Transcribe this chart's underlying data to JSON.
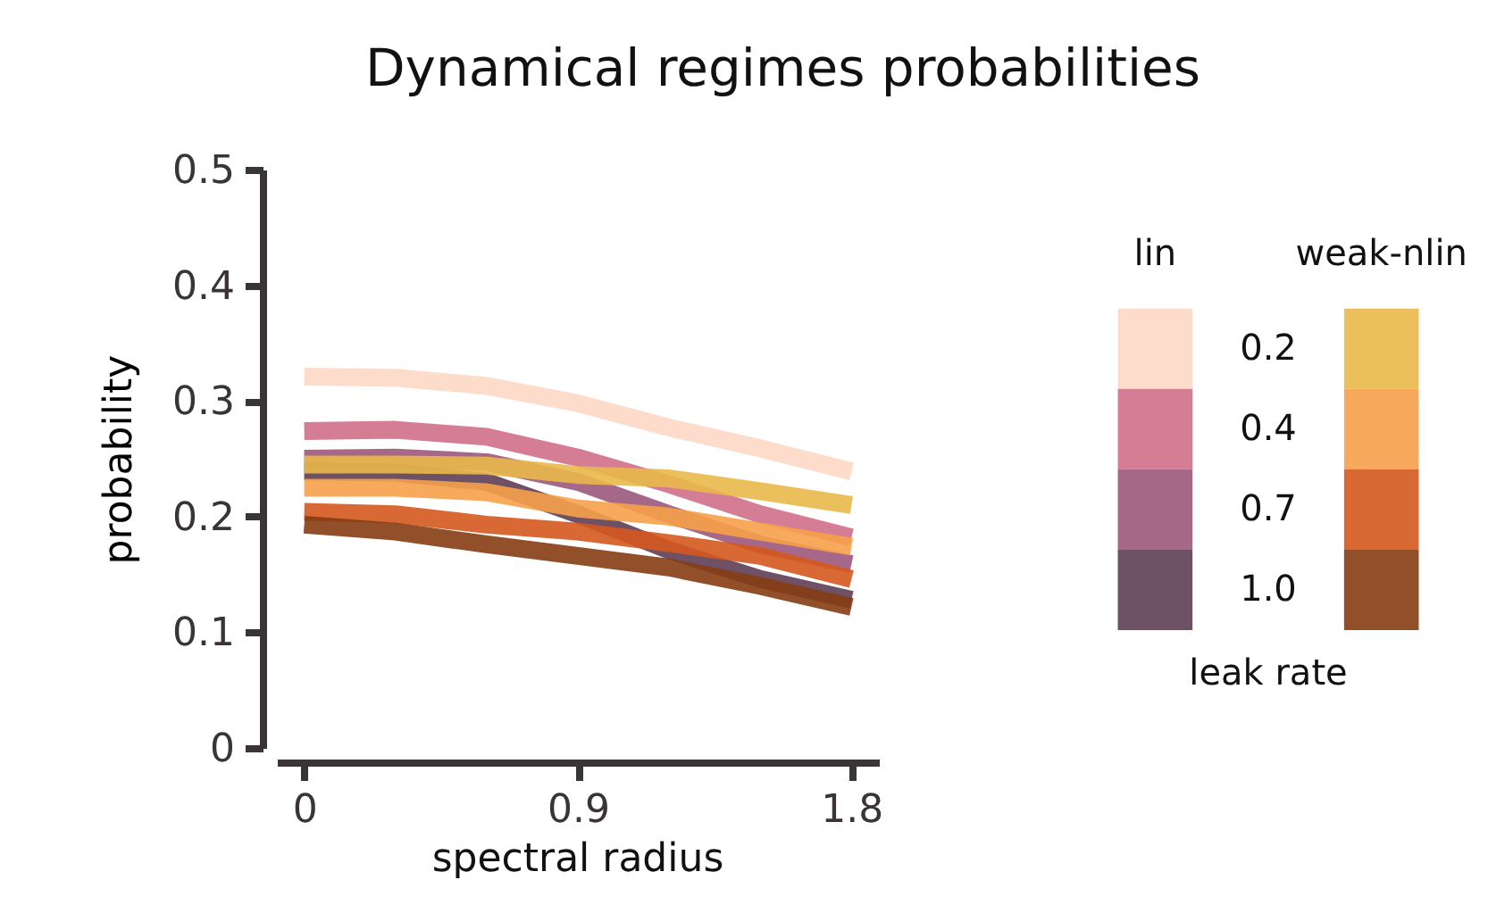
{
  "chart_data": {
    "type": "line",
    "title": "Dynamical regimes probabilities",
    "xlabel": "spectral radius",
    "ylabel": "probability",
    "legend_title": "leak rate",
    "annotations": [
      "lin",
      "weak-nlin"
    ],
    "x": [
      0,
      0.3,
      0.6,
      0.9,
      1.2,
      1.5,
      1.8
    ],
    "series": [
      {
        "name": "0.2",
        "color": "#fdd8c6",
        "values": [
          0.321,
          0.32,
          0.313,
          0.298,
          0.277,
          0.259,
          0.239
        ]
      },
      {
        "name": "0.4",
        "color": "#d06f89",
        "values": [
          0.274,
          0.275,
          0.269,
          0.251,
          0.228,
          0.202,
          0.182
        ]
      },
      {
        "name": "0.7",
        "color": "#9c587c",
        "values": [
          0.25,
          0.251,
          0.247,
          0.23,
          0.202,
          0.176,
          0.159
        ]
      },
      {
        "name": "1.0",
        "color": "#5f3e55",
        "values": [
          0.239,
          0.238,
          0.23,
          0.202,
          0.171,
          0.146,
          0.128
        ]
      },
      {
        "color": "#e9b84a",
        "values": [
          0.245,
          0.245,
          0.244,
          0.236,
          0.233,
          0.222,
          0.21
        ]
      },
      {
        "color": "#f6a14a",
        "values": [
          0.225,
          0.225,
          0.221,
          0.207,
          0.2,
          0.187,
          0.174
        ]
      },
      {
        "color": "#d4581e",
        "values": [
          0.204,
          0.202,
          0.193,
          0.187,
          0.177,
          0.166,
          0.146
        ]
      },
      {
        "color": "#853c13",
        "values": [
          0.193,
          0.187,
          0.176,
          0.166,
          0.156,
          0.14,
          0.122
        ]
      }
    ],
    "xlim": [
      -0.09,
      1.89
    ],
    "ylim": [
      0,
      0.5
    ],
    "xticks": [
      0,
      0.9,
      1.8
    ],
    "yticks": [
      0,
      0.1,
      0.2,
      0.3,
      0.4,
      0.5
    ],
    "grid": false,
    "legend": "right"
  }
}
